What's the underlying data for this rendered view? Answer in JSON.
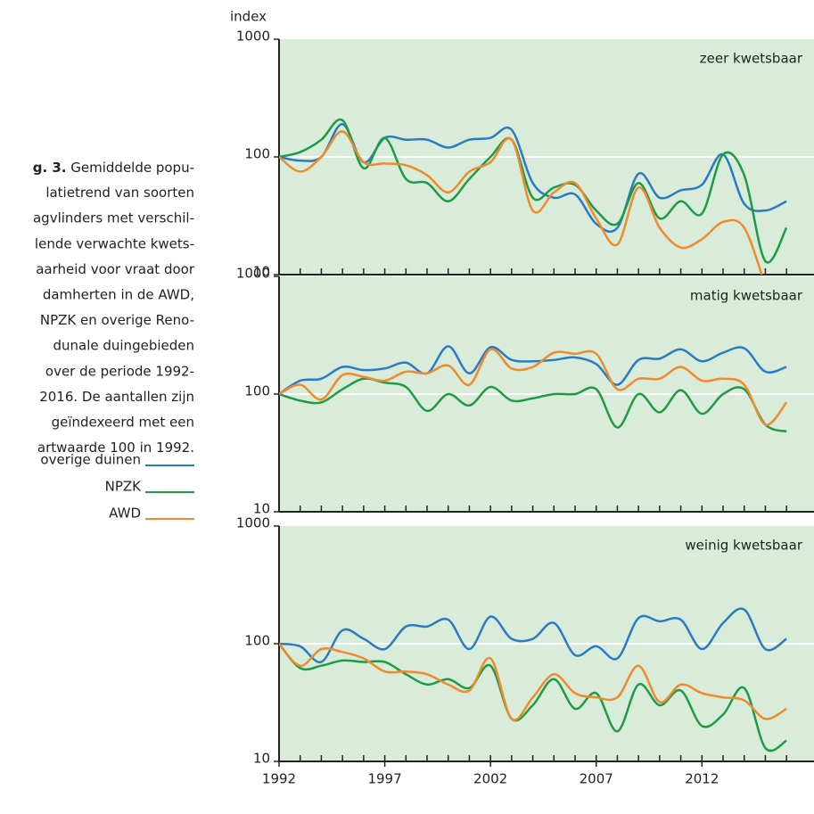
{
  "caption": {
    "label": "g. 3.",
    "lines": [
      " Gemiddelde popu-",
      "latietrend van soorten",
      "agvlinders met verschil-",
      "lende verwachte kwets-",
      "aarheid voor vraat door",
      "damherten in de AWD,",
      "NPZK en overige Reno-",
      "dunale duingebieden",
      "over de periode 1992-",
      "2016. De aantallen zijn",
      "geïndexeerd met een",
      "artwaarde 100 in 1992."
    ]
  },
  "chart_data": [
    {
      "type": "line",
      "title": "zeer kwetsbaar",
      "y_label": "index",
      "log_scale": true,
      "grid": true,
      "x": [
        1992,
        1993,
        1994,
        1995,
        1996,
        1997,
        1998,
        1999,
        2000,
        2001,
        2002,
        2003,
        2004,
        2005,
        2006,
        2007,
        2008,
        2009,
        2010,
        2011,
        2012,
        2013,
        2014,
        2015,
        2016
      ],
      "xlim": [
        1992,
        2017.3
      ],
      "ylim": [
        10,
        1000
      ],
      "yticks": [
        10,
        100,
        1000
      ],
      "series": [
        {
          "name": "overige duinen",
          "color": "#2b7bc4",
          "values": [
            100,
            93,
            100,
            190,
            90,
            145,
            140,
            140,
            120,
            140,
            145,
            170,
            60,
            45,
            48,
            27,
            25,
            72,
            45,
            52,
            58,
            105,
            40,
            35,
            42
          ]
        },
        {
          "name": "NPZK",
          "color": "#1f9a45",
          "values": [
            100,
            110,
            140,
            205,
            80,
            145,
            65,
            60,
            42,
            65,
            100,
            140,
            45,
            55,
            58,
            35,
            27,
            60,
            30,
            42,
            33,
            105,
            70,
            13,
            25
          ]
        },
        {
          "name": "AWD",
          "color": "#f08a2c",
          "values": [
            100,
            75,
            100,
            165,
            90,
            88,
            85,
            70,
            50,
            75,
            90,
            140,
            35,
            50,
            60,
            30,
            18,
            55,
            25,
            17,
            20,
            28,
            25,
            8,
            null
          ]
        }
      ]
    },
    {
      "type": "line",
      "title": "matig kwetsbaar",
      "log_scale": true,
      "grid": true,
      "x": [
        1992,
        1993,
        1994,
        1995,
        1996,
        1997,
        1998,
        1999,
        2000,
        2001,
        2002,
        2003,
        2004,
        2005,
        2006,
        2007,
        2008,
        2009,
        2010,
        2011,
        2012,
        2013,
        2014,
        2015,
        2016
      ],
      "xlim": [
        1992,
        2017.3
      ],
      "ylim": [
        10,
        1000
      ],
      "yticks": [
        10,
        100,
        1000
      ],
      "series": [
        {
          "name": "overige duinen",
          "color": "#2b7bc4",
          "values": [
            100,
            130,
            135,
            170,
            160,
            165,
            185,
            150,
            255,
            150,
            250,
            195,
            190,
            195,
            205,
            180,
            120,
            195,
            200,
            240,
            190,
            225,
            245,
            155,
            170
          ]
        },
        {
          "name": "NPZK",
          "color": "#1f9a45",
          "values": [
            100,
            88,
            85,
            110,
            135,
            125,
            115,
            72,
            100,
            80,
            115,
            88,
            92,
            100,
            100,
            110,
            52,
            100,
            70,
            108,
            68,
            100,
            110,
            55,
            48
          ]
        },
        {
          "name": "AWD",
          "color": "#f08a2c",
          "values": [
            100,
            120,
            90,
            145,
            140,
            130,
            155,
            150,
            175,
            120,
            240,
            165,
            170,
            225,
            220,
            220,
            110,
            135,
            135,
            170,
            130,
            135,
            120,
            55,
            85
          ]
        }
      ]
    },
    {
      "type": "line",
      "title": "weinig kwetsbaar",
      "log_scale": true,
      "grid": true,
      "x": [
        1992,
        1993,
        1994,
        1995,
        1996,
        1997,
        1998,
        1999,
        2000,
        2001,
        2002,
        2003,
        2004,
        2005,
        2006,
        2007,
        2008,
        2009,
        2010,
        2011,
        2012,
        2013,
        2014,
        2015,
        2016
      ],
      "xlim": [
        1992,
        2017.3
      ],
      "ylim": [
        10,
        1000
      ],
      "yticks": [
        10,
        100,
        1000
      ],
      "xticks": [
        1992,
        1997,
        2002,
        2007,
        2012
      ],
      "series": [
        {
          "name": "overige duinen",
          "color": "#2b7bc4",
          "values": [
            100,
            95,
            70,
            130,
            110,
            90,
            140,
            140,
            160,
            90,
            170,
            110,
            110,
            150,
            80,
            95,
            75,
            165,
            155,
            160,
            90,
            150,
            195,
            90,
            110
          ]
        },
        {
          "name": "NPZK",
          "color": "#1f9a45",
          "values": [
            100,
            62,
            65,
            72,
            70,
            70,
            55,
            45,
            50,
            42,
            65,
            23,
            30,
            50,
            28,
            38,
            18,
            45,
            30,
            40,
            20,
            25,
            42,
            13,
            15
          ]
        },
        {
          "name": "AWD",
          "color": "#f08a2c",
          "values": [
            100,
            65,
            90,
            85,
            75,
            58,
            58,
            55,
            45,
            40,
            75,
            23,
            35,
            55,
            38,
            35,
            35,
            65,
            32,
            45,
            38,
            35,
            33,
            23,
            28
          ]
        }
      ]
    }
  ]
}
